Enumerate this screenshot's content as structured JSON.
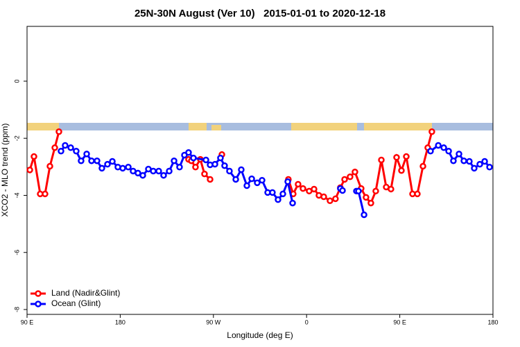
{
  "chart_data": {
    "type": "line",
    "title": "25N-30N August (Ver 10)   2015-01-01 to 2020-12-18",
    "x_label": "Longitude (deg E)",
    "y_label": "XCO2 - MLO trend (ppm)",
    "xlim": [
      90,
      540
    ],
    "xticks": [
      {
        "value": 90,
        "label": "90 E"
      },
      {
        "value": 180,
        "label": "180"
      },
      {
        "value": 270,
        "label": "90 W"
      },
      {
        "value": 360,
        "label": "0"
      },
      {
        "value": 450,
        "label": "90 E"
      },
      {
        "value": 540,
        "label": "180"
      }
    ],
    "ylim": [
      -8.17,
      1.92
    ],
    "yticks": [
      0,
      -2,
      -4,
      -6,
      -8
    ],
    "legend": "bottom-left",
    "series": [
      {
        "name": "Land (Nadir&Glint)",
        "color": "#ff0000",
        "x": [
          92.7,
          96.7,
          102.7,
          107.4,
          112.1,
          116.8,
          120.8,
          null,
          246.0,
          248.7,
          252.7,
          257.4,
          261.4,
          266.8,
          null,
          278.2,
          null,
          342.4,
          347.1,
          351.8,
          356.5,
          362.5,
          367.2,
          371.9,
          376.6,
          382.6,
          387.9,
          392.6,
          396.7,
          402.0,
          406.7,
          412.7,
          417.4,
          422.1,
          426.8,
          432.2,
          436.9,
          441.5,
          446.9,
          451.6,
          456.3,
          462.3,
          467.0,
          472.4,
          477.0,
          481.0
        ],
        "values": [
          -3.11,
          -2.64,
          -3.95,
          -3.95,
          -2.98,
          -2.33,
          -1.77,
          null,
          -2.74,
          -2.79,
          -3.01,
          -2.74,
          -3.25,
          -3.44,
          null,
          -2.57,
          null,
          -3.44,
          -3.95,
          -3.61,
          -3.76,
          -3.85,
          -3.78,
          -4.0,
          -4.05,
          -4.19,
          -4.12,
          -3.73,
          -3.44,
          -3.35,
          -3.18,
          -3.76,
          -4.07,
          -4.27,
          -3.85,
          -2.76,
          -3.71,
          -3.78,
          -2.67,
          -3.13,
          -2.64,
          -3.95,
          -3.95,
          -2.98,
          -2.33,
          -1.77
        ]
      },
      {
        "name": "Ocean (Glint)",
        "color": "#0000ff",
        "x": [
          122.8,
          126.8,
          132.2,
          137.5,
          142.2,
          147.6,
          152.3,
          157.6,
          162.3,
          167.7,
          172.4,
          177.7,
          182.4,
          187.8,
          192.4,
          197.1,
          201.8,
          207.2,
          211.9,
          217.2,
          221.9,
          227.3,
          232.0,
          237.3,
          242.0,
          246.0,
          250.7,
          262.8,
          266.8,
          271.5,
          276.8,
          280.8,
          285.5,
          291.6,
          296.9,
          302.3,
          307.0,
          312.3,
          317.0,
          322.4,
          327.0,
          332.4,
          337.1,
          341.8,
          346.5,
          null,
          392.6,
          394.7,
          null,
          408.1,
          410.1,
          415.5,
          null,
          479.7,
          487.2,
          492.5,
          497.2,
          501.8,
          507.2,
          511.9,
          517.2,
          521.9,
          527.3,
          532.0,
          536.7
        ],
        "values": [
          -2.45,
          -2.25,
          -2.33,
          -2.45,
          -2.79,
          -2.55,
          -2.79,
          -2.79,
          -3.05,
          -2.91,
          -2.81,
          -3.01,
          -3.05,
          -3.01,
          -3.15,
          -3.22,
          -3.3,
          -3.08,
          -3.15,
          -3.15,
          -3.3,
          -3.15,
          -2.79,
          -3.01,
          -2.59,
          -2.5,
          -2.69,
          -2.76,
          -2.93,
          -2.91,
          -2.69,
          -2.96,
          -3.15,
          -3.44,
          -3.1,
          -3.66,
          -3.42,
          -3.56,
          -3.47,
          -3.9,
          -3.9,
          -4.15,
          -3.95,
          -3.52,
          -4.27,
          null,
          -3.76,
          -3.83,
          null,
          -3.85,
          -3.85,
          -4.68,
          null,
          -2.45,
          -2.25,
          -2.33,
          -2.45,
          -2.79,
          -2.55,
          -2.79,
          -2.81,
          -3.05,
          -2.91,
          -2.81,
          -3.01
        ]
      }
    ]
  }
}
